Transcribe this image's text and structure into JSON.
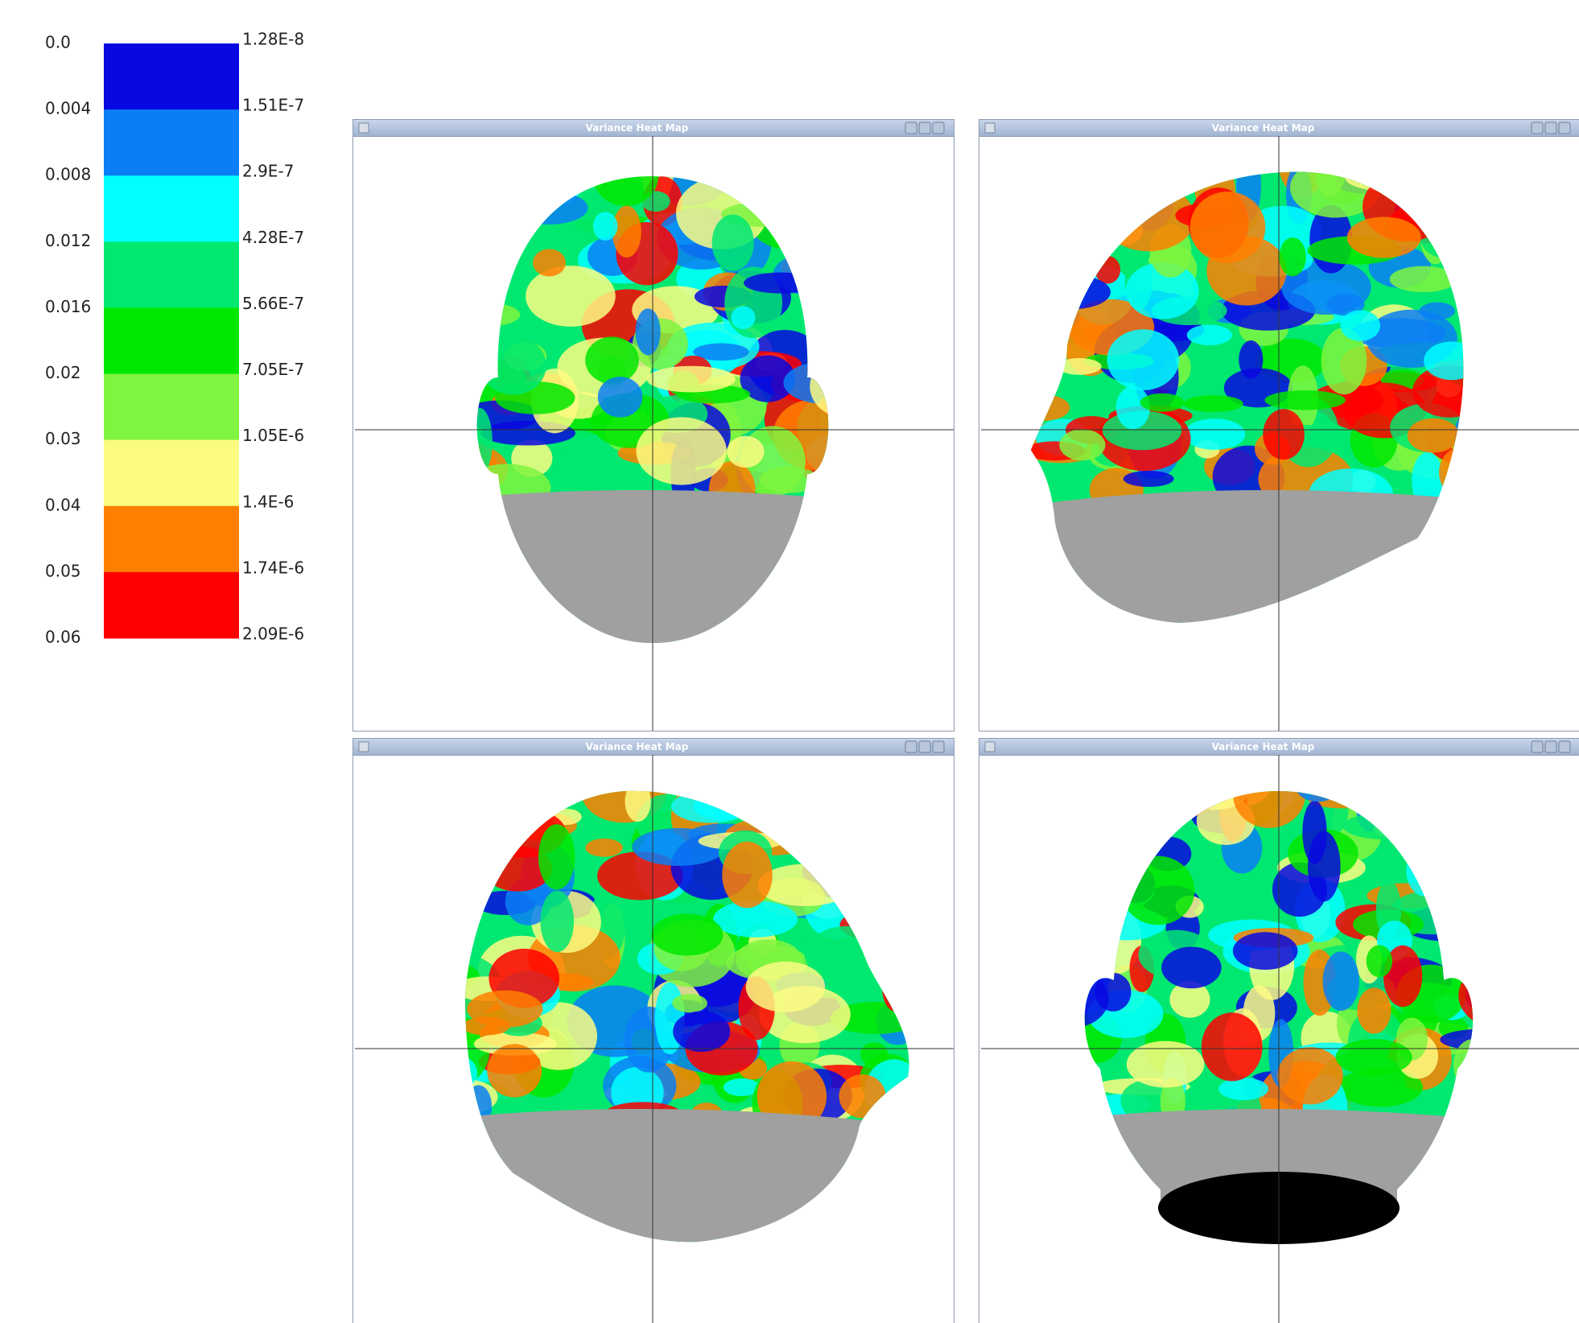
{
  "legend": {
    "left_labels": [
      "0.0",
      "0.004",
      "0.008",
      "0.012",
      "0.016",
      "0.02",
      "0.03",
      "0.04",
      "0.05",
      "0.06"
    ],
    "right_labels": [
      "1.28E-8",
      "1.51E-7",
      "2.9E-7",
      "4.28E-7",
      "5.66E-7",
      "7.05E-7",
      "1.05E-6",
      "1.4E-6",
      "1.74E-6",
      "2.09E-6"
    ],
    "colors": [
      "#0808e0",
      "#0a7ff5",
      "#00ffff",
      "#00e870",
      "#00e800",
      "#7ff53f",
      "#fbfb82",
      "#ff7f00",
      "#ff0000"
    ]
  },
  "windows": [
    {
      "title": "Variance Heat Map"
    },
    {
      "title": "Variance Heat Map"
    },
    {
      "title": "Variance Heat Map"
    },
    {
      "title": "Variance Heat Map"
    }
  ]
}
